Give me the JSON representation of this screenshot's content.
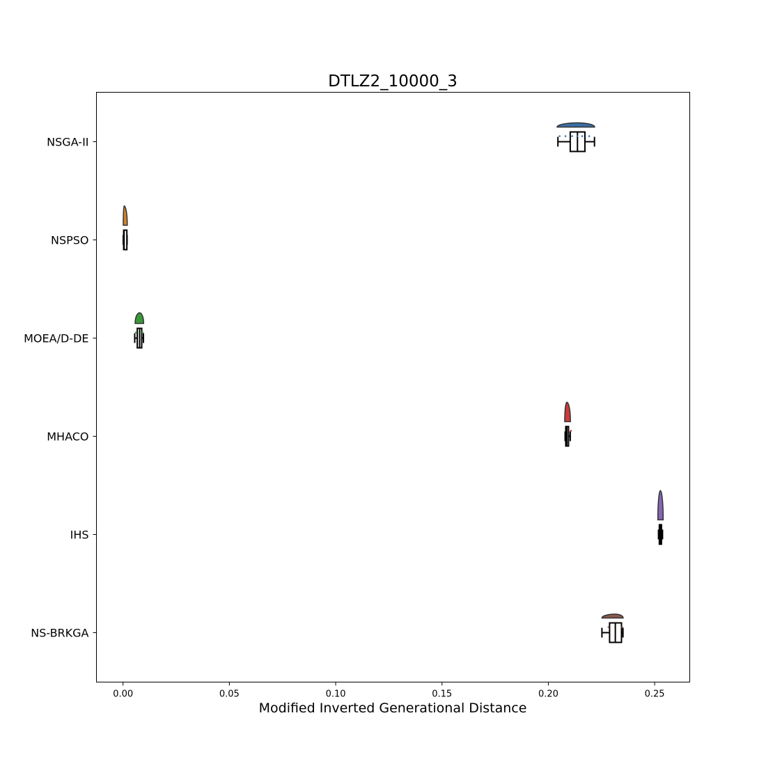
{
  "chart_data": {
    "type": "raincloud",
    "title": "DTLZ2_10000_3",
    "xlabel": "Modified Inverted Generational Distance",
    "ylabel": "",
    "xlim": [
      -0.0125,
      0.2665
    ],
    "x_ticks": [
      0.0,
      0.05,
      0.1,
      0.15,
      0.2,
      0.25
    ],
    "x_tick_labels": [
      "0.00",
      "0.05",
      "0.10",
      "0.15",
      "0.20",
      "0.25"
    ],
    "grid": false,
    "legend": "none",
    "categories": [
      "NSGA-II",
      "NSPSO",
      "MOEA/D-DE",
      "MHACO",
      "IHS",
      "NS-BRKGA"
    ],
    "series": [
      {
        "label": "NSGA-II",
        "color": "#3b6ea5",
        "whisker_low": 0.2045,
        "q1": 0.2103,
        "median": 0.2137,
        "q3": 0.2172,
        "whisker_high": 0.2217,
        "density_min": 0.2041,
        "density_max": 0.2218,
        "density_height": 0.22,
        "points": [
          0.2053,
          0.2081,
          0.2112,
          0.2136,
          0.2159,
          0.2192
        ]
      },
      {
        "label": "NSPSO",
        "color": "#d2822c",
        "whisker_low": 0.0001,
        "q1": 0.0003,
        "median": 0.0005,
        "q3": 0.0018,
        "whisker_high": 0.0019,
        "density_min": 0.0001,
        "density_max": 0.002,
        "density_height": 1.0,
        "points": []
      },
      {
        "label": "MOEA/D-DE",
        "color": "#3a9a3a",
        "whisker_low": 0.0055,
        "q1": 0.0067,
        "median": 0.0078,
        "q3": 0.0088,
        "whisker_high": 0.0096,
        "density_min": 0.0057,
        "density_max": 0.0097,
        "density_height": 0.55,
        "points": [
          0.0061,
          0.0092
        ]
      },
      {
        "label": "MHACO",
        "color": "#cc3b3b",
        "whisker_low": 0.2079,
        "q1": 0.2082,
        "median": 0.2087,
        "q3": 0.2095,
        "whisker_high": 0.2103,
        "density_min": 0.2077,
        "density_max": 0.2104,
        "density_height": 1.0,
        "points": [
          0.2106
        ]
      },
      {
        "label": "IHS",
        "color": "#8466b5",
        "whisker_low": 0.2518,
        "q1": 0.2522,
        "median": 0.2527,
        "q3": 0.2532,
        "whisker_high": 0.2537,
        "density_min": 0.2515,
        "density_max": 0.254,
        "density_height": 1.5,
        "points": []
      },
      {
        "label": "NS-BRKGA",
        "color": "#8b5a4f",
        "whisker_low": 0.2252,
        "q1": 0.2288,
        "median": 0.2315,
        "q3": 0.2344,
        "whisker_high": 0.2351,
        "density_min": 0.2252,
        "density_max": 0.2352,
        "density_height": 0.2,
        "points": [
          0.2283,
          0.2347
        ]
      }
    ]
  }
}
